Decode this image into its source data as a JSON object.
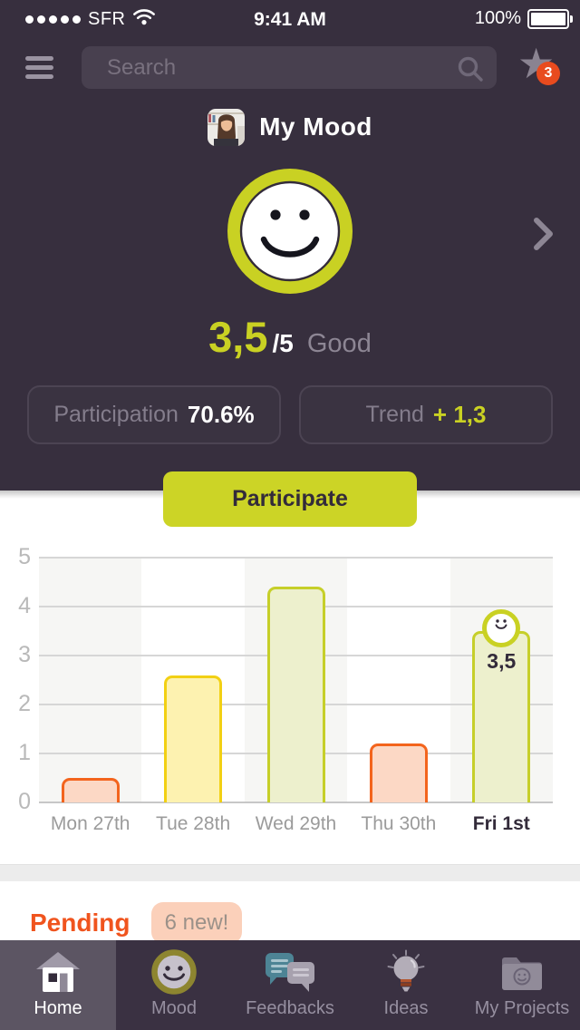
{
  "status_bar": {
    "carrier": "SFR",
    "time": "9:41 AM",
    "battery_pct": "100%"
  },
  "nav": {
    "search_placeholder": "Search",
    "favorites_badge": "3"
  },
  "mood_header": {
    "title": "My Mood"
  },
  "score": {
    "value": "3,5",
    "of": "/5",
    "label": "Good"
  },
  "stats": {
    "participation_label": "Participation",
    "participation_value": "70.6%",
    "trend_label": "Trend",
    "trend_value": "+ 1,3"
  },
  "participate_button": "Participate",
  "chart_data": {
    "type": "bar",
    "title": "",
    "categories": [
      "Mon 27th",
      "Tue 28th",
      "Wed 29th",
      "Thu 30th",
      "Fri 1st"
    ],
    "values": [
      0.5,
      2.6,
      4.4,
      1.2,
      3.5
    ],
    "bar_styles": [
      "orange",
      "yellow",
      "green",
      "orange",
      "green"
    ],
    "palette": {
      "orange": {
        "fill": "#fcd8c5",
        "border": "#f3641d"
      },
      "yellow": {
        "fill": "#fdf2b0",
        "border": "#f2d013"
      },
      "green": {
        "fill": "#edf0cd",
        "border": "#c6cf29"
      }
    },
    "highlight": {
      "index": 4,
      "label": "3,5",
      "smiley": true
    },
    "ylim": [
      0,
      5
    ],
    "yticks": [
      0,
      1,
      2,
      3,
      4,
      5
    ],
    "grid": true,
    "legend": false,
    "column_stripes": true
  },
  "pending": {
    "title": "Pending",
    "badge": "6 new!"
  },
  "tab_bar": {
    "items": [
      {
        "label": "Home",
        "active": true
      },
      {
        "label": "Mood",
        "active": false
      },
      {
        "label": "Feedbacks",
        "active": false
      },
      {
        "label": "Ideas",
        "active": false
      },
      {
        "label": "My Projects",
        "active": false
      }
    ]
  },
  "colors": {
    "background_dark": "#372f3e",
    "accent_green": "#c9d123",
    "button_green": "#ccd426",
    "pending_orange": "#f0541e",
    "notification_orange": "#e84b1e",
    "badge_peach": "#fbd0ba",
    "tab_bar_bg": "#3a3142",
    "tab_active_bg": "#5c5563"
  }
}
